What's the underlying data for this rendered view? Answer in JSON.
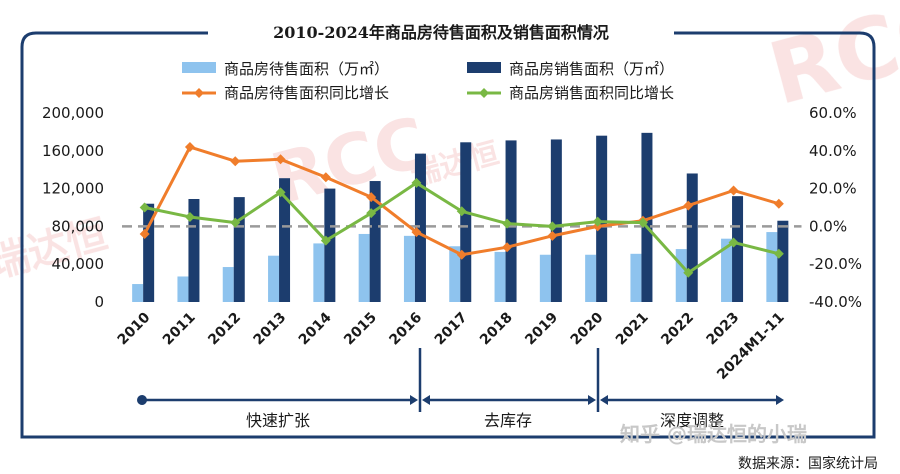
{
  "chart_data": {
    "type": "bar",
    "title": "2010-2024年商品房待售面积及销售面积情况",
    "categories": [
      "2010",
      "2011",
      "2012",
      "2013",
      "2014",
      "2015",
      "2016",
      "2017",
      "2018",
      "2019",
      "2020",
      "2021",
      "2022",
      "2023",
      "2024M1-11"
    ],
    "series": [
      {
        "name": "商品房待售面积（万㎡）",
        "kind": "bar",
        "axis": "left",
        "color": "#8ec3ee",
        "values": [
          19000,
          27000,
          37000,
          49000,
          62000,
          72000,
          70000,
          59000,
          53000,
          50000,
          50000,
          51000,
          56000,
          67000,
          74000
        ]
      },
      {
        "name": "商品房销售面积（万㎡）",
        "kind": "bar",
        "axis": "left",
        "color": "#1c3d6e",
        "values": [
          104000,
          109000,
          111000,
          131000,
          120000,
          128000,
          157000,
          169000,
          171000,
          172000,
          176000,
          179000,
          136000,
          112000,
          86000
        ]
      },
      {
        "name": "商品房待售面积同比增长",
        "kind": "line",
        "axis": "right",
        "color": "#f07d2b",
        "values": [
          -4.0,
          42.0,
          34.5,
          35.5,
          26.0,
          15.5,
          -3.0,
          -15.0,
          -11.0,
          -5.0,
          0.0,
          3.0,
          11.0,
          19.0,
          12.0
        ]
      },
      {
        "name": "商品房销售面积同比增长",
        "kind": "line",
        "axis": "right",
        "color": "#79b844",
        "values": [
          10.0,
          5.0,
          2.0,
          18.0,
          -7.5,
          7.0,
          23.0,
          8.0,
          1.5,
          0.0,
          2.5,
          2.0,
          -24.5,
          -8.5,
          -14.5
        ]
      }
    ],
    "ylim_left": [
      0,
      200000
    ],
    "yticks_left": [
      "0",
      "40,000",
      "80,000",
      "120,000",
      "160,000",
      "200,000"
    ],
    "ylim_right": [
      -40,
      60
    ],
    "yticks_right": [
      "-40.0%",
      "-20.0%",
      "0.0%",
      "20.0%",
      "40.0%",
      "60.0%"
    ],
    "zero_line": "dashed",
    "grid": false,
    "legend": "top"
  },
  "phases": [
    {
      "label": "快速扩张",
      "start": 0,
      "end": 6
    },
    {
      "label": "去库存",
      "start": 7,
      "end": 10
    },
    {
      "label": "深度调整",
      "start": 11,
      "end": 14
    }
  ],
  "source": "数据来源：国家统计局",
  "watermarks": {
    "brand": "RCC",
    "cn": "瑞达恒",
    "zh_credit": "知乎 @瑞达恒的小瑞"
  }
}
